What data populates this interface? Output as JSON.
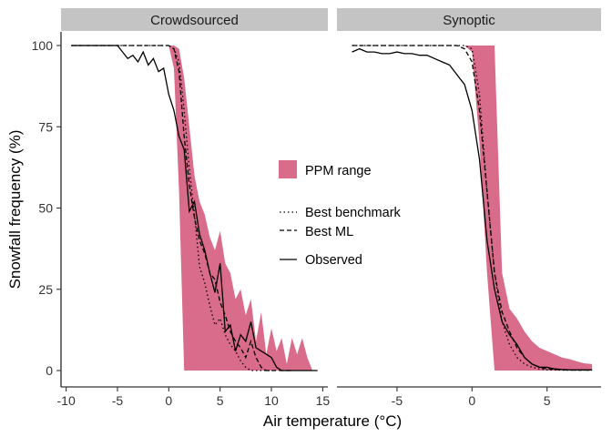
{
  "chart_data": {
    "type": "area",
    "ylabel": "Snowfall frequency (%)",
    "xlabel": "Air temperature (°C)",
    "ylim": [
      0,
      100
    ],
    "yticks": [
      0,
      25,
      50,
      75,
      100
    ],
    "grid": false,
    "legend_position": "center-right",
    "colors": {
      "ppm": "#d96b8b",
      "line": "#000000",
      "strip": "#c4c4c4"
    },
    "legend": {
      "ppm_label": "PPM range",
      "benchmark_label": "Best benchmark",
      "ml_label": "Best ML",
      "observed_label": "Observed"
    },
    "panels": [
      {
        "title": "Crowdsourced",
        "xlim": [
          -10.5,
          15.5
        ],
        "xticks": [
          -10,
          -5,
          0,
          5,
          10,
          15
        ],
        "ppm_range": {
          "x": [
            0,
            0.5,
            1,
            1.5,
            2,
            2.5,
            3,
            3.5,
            4,
            4.5,
            5,
            5.5,
            6,
            6.5,
            7,
            7.5,
            8,
            8.5,
            9,
            9.5,
            10,
            10.5,
            11,
            11.5,
            12,
            12.5,
            13,
            13.5,
            14
          ],
          "upper": [
            100,
            100,
            99,
            90,
            75,
            60,
            52,
            48,
            41,
            37,
            43,
            33,
            30,
            22,
            25,
            17,
            22,
            9,
            18,
            5,
            13,
            6,
            10,
            2,
            10,
            5,
            10,
            4,
            0
          ],
          "lower": [
            100,
            93,
            55,
            0,
            0,
            0,
            0,
            0,
            0,
            0,
            0,
            0,
            0,
            0,
            0,
            0,
            0,
            0,
            0,
            0,
            0,
            0,
            0,
            0,
            0,
            0,
            0,
            0,
            0
          ]
        },
        "observed": {
          "x": [
            -9.5,
            -9,
            -8.5,
            -8,
            -7.5,
            -7,
            -6.5,
            -6,
            -5.5,
            -5,
            -4.5,
            -4,
            -3.5,
            -3,
            -2.5,
            -2,
            -1.5,
            -1,
            -0.5,
            0,
            0.5,
            1,
            1.5,
            2,
            2.5,
            3,
            3.5,
            4,
            4.5,
            5,
            5.5,
            6,
            6.5,
            7,
            7.5,
            8,
            8.5,
            9,
            9.5,
            10,
            10.5,
            11,
            11.5,
            12,
            12.5,
            13,
            13.5,
            14,
            14.5
          ],
          "y": [
            100,
            100,
            100,
            100,
            100,
            100,
            100,
            100,
            100,
            100,
            98,
            96,
            97,
            95,
            98,
            94,
            96,
            92,
            93,
            85,
            80,
            72,
            68,
            49,
            52,
            42,
            37,
            30,
            24,
            33,
            12,
            14,
            6,
            11,
            9,
            15,
            7,
            6,
            5,
            4,
            1,
            0,
            0,
            0,
            0,
            0,
            0,
            0,
            0
          ]
        },
        "best_ml": {
          "x": [
            -9.5,
            -5,
            -1,
            0,
            0.5,
            1,
            1.5,
            2,
            2.5,
            3,
            3.5,
            4,
            4.5,
            5,
            5.5,
            6,
            6.5,
            7,
            7.5,
            8,
            8.5,
            9,
            9.5,
            10,
            11,
            12
          ],
          "y": [
            100,
            100,
            100,
            100,
            99,
            92,
            72,
            57,
            47,
            40,
            36,
            30,
            28,
            21,
            17,
            12,
            9,
            7,
            4,
            9,
            4,
            1,
            0,
            0,
            0,
            0
          ]
        },
        "best_benchmark": {
          "x": [
            -9.5,
            0,
            0.5,
            1,
            1.5,
            2,
            2.5,
            3,
            3.5,
            4,
            4.5,
            5,
            5.5,
            6,
            6.5,
            7,
            7.5,
            8,
            8.5,
            9,
            10
          ],
          "y": [
            100,
            100,
            99,
            95,
            80,
            62,
            48,
            32,
            27,
            20,
            14,
            16,
            11,
            8,
            6,
            3,
            1,
            0,
            0,
            0,
            0
          ]
        }
      },
      {
        "title": "Synoptic",
        "xlim": [
          -9,
          8.6
        ],
        "xticks": [
          -5,
          0,
          5
        ],
        "ppm_range": {
          "x": [
            -7.5,
            -0.5,
            0,
            0.5,
            1,
            1.5,
            2,
            2.5,
            3,
            3.5,
            4,
            4.5,
            5,
            5.5,
            6,
            6.5,
            7,
            7.5,
            8
          ],
          "upper": [
            100,
            100,
            100,
            100,
            100,
            100,
            30,
            19,
            16,
            12,
            9,
            7,
            6,
            5,
            4,
            3.5,
            2.8,
            2.2,
            2
          ],
          "lower": [
            100,
            100,
            98,
            70,
            30,
            0,
            0,
            0,
            0,
            0,
            0,
            0,
            0,
            0,
            0,
            0,
            0,
            0,
            0
          ]
        },
        "observed": {
          "x": [
            -8,
            -7.5,
            -7,
            -6.5,
            -6,
            -5.5,
            -5,
            -4.5,
            -4,
            -3.5,
            -3,
            -2.5,
            -2,
            -1.5,
            -1,
            -0.5,
            0,
            0.5,
            1,
            1.5,
            2,
            2.5,
            3,
            3.5,
            4,
            4.5,
            5,
            5.5,
            6,
            6.5,
            7,
            7.5,
            8
          ],
          "y": [
            98,
            99,
            98,
            98,
            97.5,
            97.5,
            98,
            97.5,
            97.5,
            97,
            97,
            96,
            95,
            94,
            91,
            88,
            80,
            65,
            40,
            25,
            15,
            11,
            8,
            4,
            2,
            1,
            1,
            0.5,
            0.3,
            0.2,
            0.2,
            0.2,
            0.2
          ]
        },
        "best_ml": {
          "x": [
            -8,
            -3,
            -1,
            -0.5,
            0,
            0.5,
            1,
            1.5,
            2,
            2.5,
            3,
            3.5,
            4,
            4.5,
            5,
            6,
            7,
            8
          ],
          "y": [
            100,
            100,
            100,
            99,
            95,
            80,
            55,
            30,
            18,
            12,
            7,
            4,
            2,
            1,
            0.5,
            0.2,
            0.1,
            0.1
          ]
        },
        "best_benchmark": {
          "x": [
            -8,
            -0.5,
            0,
            0.5,
            1,
            1.5,
            2,
            2.5,
            3,
            3.5,
            4,
            4.5,
            5,
            6,
            7,
            8
          ],
          "y": [
            100,
            100,
            99,
            85,
            55,
            30,
            15,
            8,
            4,
            2,
            1,
            0.5,
            0.2,
            0.1,
            0.1,
            0.1
          ]
        }
      }
    ]
  }
}
